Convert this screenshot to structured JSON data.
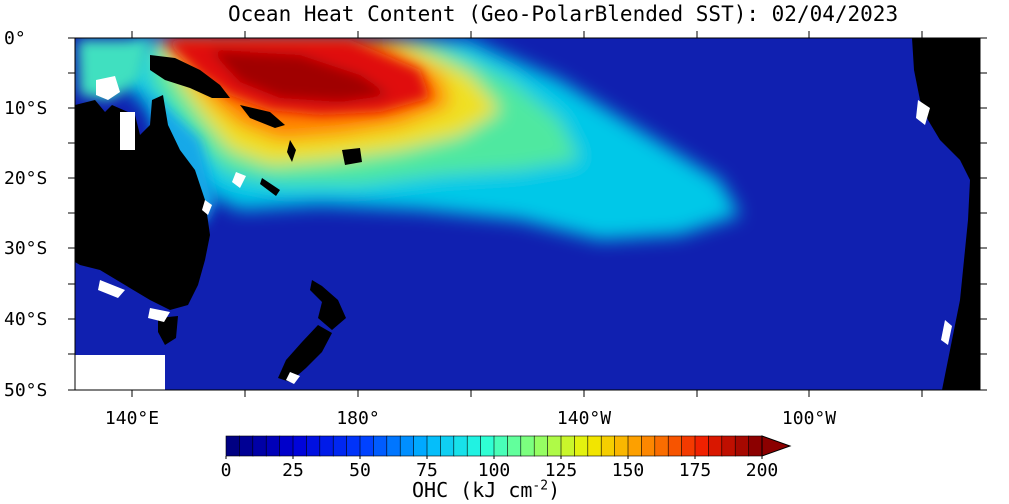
{
  "title": "Ocean Heat Content (Geo-PolarBlended SST): 02/04/2023",
  "lat_labels": [
    "0°",
    "10°S",
    "20°S",
    "30°S",
    "40°S",
    "50°S"
  ],
  "lon_labels": [
    "140°E",
    "180°",
    "140°W",
    "100°W"
  ],
  "colorbar": {
    "ticks": [
      "0",
      "25",
      "50",
      "75",
      "100",
      "125",
      "150",
      "175",
      "200"
    ],
    "min": 0,
    "max": 200,
    "step": 5,
    "unit_prefix": "OHC (kJ cm",
    "unit_exp": "-2",
    "unit_suffix": ")"
  },
  "colors": {
    "land": "#000000",
    "low": "#00008f",
    "high": "#8b0000",
    "missing": "#ffffff"
  }
}
